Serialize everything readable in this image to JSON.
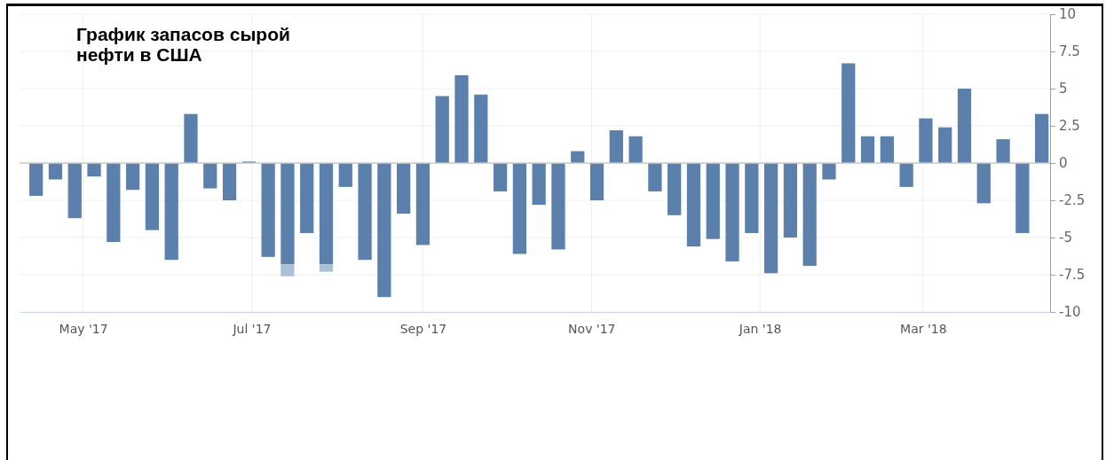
{
  "chart_data": {
    "type": "bar",
    "title": "График запасов сырой нефти в США",
    "stacked": true,
    "grid": true,
    "x": [
      "2017-04-14",
      "2017-04-21",
      "2017-04-28",
      "2017-05-05",
      "2017-05-12",
      "2017-05-19",
      "2017-05-26",
      "2017-06-02",
      "2017-06-09",
      "2017-06-16",
      "2017-06-23",
      "2017-06-30",
      "2017-07-07",
      "2017-07-14",
      "2017-07-21",
      "2017-07-28",
      "2017-08-04",
      "2017-08-11",
      "2017-08-18",
      "2017-08-25",
      "2017-09-01",
      "2017-09-08",
      "2017-09-15",
      "2017-09-22",
      "2017-09-29",
      "2017-10-06",
      "2017-10-13",
      "2017-10-20",
      "2017-10-27",
      "2017-11-03",
      "2017-11-10",
      "2017-11-17",
      "2017-11-24",
      "2017-12-01",
      "2017-12-08",
      "2017-12-15",
      "2017-12-22",
      "2017-12-29",
      "2018-01-05",
      "2018-01-12",
      "2018-01-19",
      "2018-01-26",
      "2018-02-02",
      "2018-02-09",
      "2018-02-16",
      "2018-02-23",
      "2018-03-02",
      "2018-03-09",
      "2018-03-16",
      "2018-03-23",
      "2018-03-30",
      "2018-04-06",
      "2018-04-13"
    ],
    "series": [
      {
        "color": "#5b80ab",
        "values": [
          -2.2,
          -1.1,
          -3.7,
          -0.9,
          -5.3,
          -1.8,
          -4.5,
          -6.5,
          3.3,
          -1.7,
          -2.5,
          0.1,
          -6.3,
          -6.8,
          -4.7,
          -6.8,
          -1.6,
          -6.5,
          -9.0,
          -3.4,
          -5.5,
          4.5,
          5.9,
          4.6,
          -1.9,
          -6.1,
          -2.8,
          -5.8,
          0.8,
          -2.5,
          2.2,
          1.8,
          -1.9,
          -3.5,
          -5.6,
          -5.1,
          -6.6,
          -4.7,
          -7.4,
          -5.0,
          -6.9,
          -1.1,
          6.7,
          1.8,
          1.8,
          -1.6,
          3.0,
          2.4,
          5.0,
          -2.7,
          1.6,
          -4.7,
          3.3
        ]
      },
      {
        "color": "#a9c0d6",
        "values": [
          null,
          null,
          null,
          null,
          null,
          null,
          null,
          null,
          null,
          null,
          null,
          null,
          null,
          -0.8,
          null,
          -0.5,
          null,
          null,
          null,
          null,
          null,
          null,
          null,
          null,
          null,
          null,
          null,
          null,
          null,
          null,
          null,
          null,
          null,
          null,
          null,
          null,
          null,
          null,
          null,
          null,
          null,
          null,
          null,
          null,
          null,
          null,
          null,
          null,
          null,
          null,
          null,
          null,
          null
        ]
      }
    ],
    "xlim": [
      "2017-04-08",
      "2018-04-16"
    ],
    "xticks": [
      {
        "value": "2017-05-01",
        "label": "May '17"
      },
      {
        "value": "2017-07-01",
        "label": "Jul '17"
      },
      {
        "value": "2017-09-01",
        "label": "Sep '17"
      },
      {
        "value": "2017-11-01",
        "label": "Nov '17"
      },
      {
        "value": "2018-01-01",
        "label": "Jan '18"
      },
      {
        "value": "2018-03-01",
        "label": "Mar '18"
      }
    ],
    "ylim": [
      -10,
      10
    ],
    "yticks": [
      -10,
      -7.5,
      -5,
      -2.5,
      0,
      2.5,
      5,
      7.5,
      10
    ]
  }
}
